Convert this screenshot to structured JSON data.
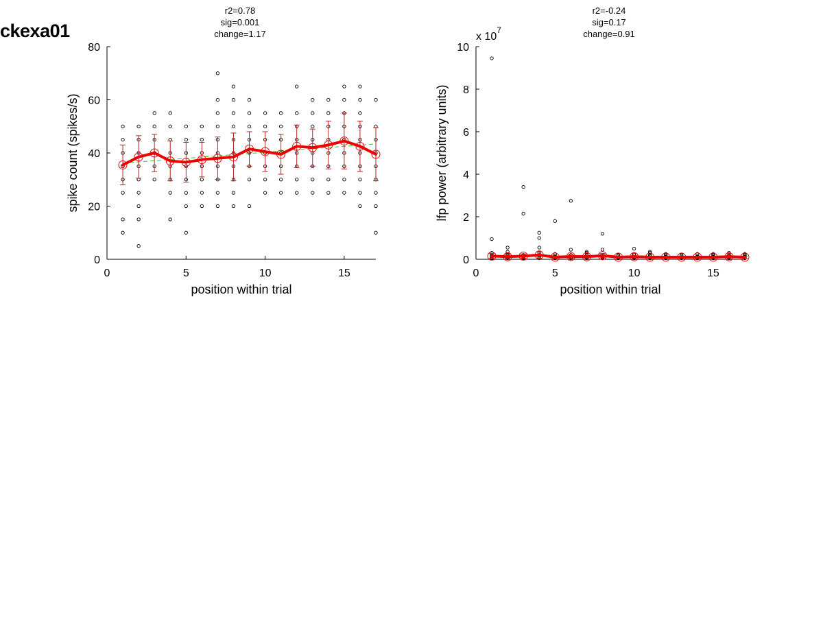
{
  "figure_title": "ckexa01",
  "chart_data": [
    {
      "type": "scatter",
      "stats": [
        "r2=0.78",
        "sig=0.001",
        "change=1.17"
      ],
      "xlabel": "position within trial",
      "ylabel": "spike count (spikes/s)",
      "xlim": [
        0,
        17
      ],
      "ylim": [
        0,
        80
      ],
      "xticks": [
        0,
        5,
        10,
        15
      ],
      "yticks": [
        0,
        20,
        40,
        60,
        80
      ],
      "exponent_label": "",
      "grid": false,
      "trials": [
        {
          "x": 1,
          "y": [
            10,
            15,
            25,
            30,
            35,
            40,
            45,
            50
          ]
        },
        {
          "x": 2,
          "y": [
            5,
            15,
            20,
            25,
            30,
            35,
            40,
            45,
            50
          ]
        },
        {
          "x": 3,
          "y": [
            30,
            35,
            40,
            45,
            50,
            55
          ]
        },
        {
          "x": 4,
          "y": [
            15,
            25,
            30,
            35,
            40,
            45,
            50,
            55
          ]
        },
        {
          "x": 5,
          "y": [
            10,
            20,
            25,
            30,
            35,
            40,
            45,
            50
          ]
        },
        {
          "x": 6,
          "y": [
            20,
            25,
            30,
            35,
            40,
            45,
            50
          ]
        },
        {
          "x": 7,
          "y": [
            20,
            25,
            30,
            35,
            40,
            45,
            50,
            55,
            60,
            70
          ]
        },
        {
          "x": 8,
          "y": [
            20,
            25,
            30,
            35,
            40,
            45,
            50,
            55,
            60,
            65
          ]
        },
        {
          "x": 9,
          "y": [
            20,
            30,
            35,
            40,
            45,
            50,
            55,
            60
          ]
        },
        {
          "x": 10,
          "y": [
            25,
            30,
            35,
            40,
            45,
            50,
            55
          ]
        },
        {
          "x": 11,
          "y": [
            25,
            30,
            35,
            40,
            45,
            50,
            55
          ]
        },
        {
          "x": 12,
          "y": [
            25,
            30,
            35,
            40,
            45,
            50,
            55,
            65
          ]
        },
        {
          "x": 13,
          "y": [
            25,
            30,
            35,
            40,
            45,
            50,
            55,
            60
          ]
        },
        {
          "x": 14,
          "y": [
            25,
            30,
            35,
            40,
            45,
            50,
            55,
            60
          ]
        },
        {
          "x": 15,
          "y": [
            25,
            30,
            35,
            40,
            45,
            50,
            55,
            60,
            65
          ]
        },
        {
          "x": 16,
          "y": [
            20,
            25,
            30,
            35,
            40,
            45,
            50,
            55,
            60,
            65
          ]
        },
        {
          "x": 17,
          "y": [
            10,
            20,
            25,
            30,
            35,
            40,
            45,
            50,
            60
          ]
        }
      ],
      "mean": {
        "x": [
          1,
          2,
          3,
          4,
          5,
          6,
          7,
          8,
          9,
          10,
          11,
          12,
          13,
          14,
          15,
          16,
          17
        ],
        "y": [
          35.5,
          38.5,
          40,
          37,
          36.5,
          37.5,
          38,
          38.5,
          41.5,
          40.5,
          39.5,
          42.5,
          42,
          43,
          44.5,
          42.5,
          39.5
        ],
        "err": [
          7.5,
          8,
          7,
          7.5,
          7.5,
          6.5,
          8,
          9,
          6.5,
          7.5,
          7.5,
          8,
          7,
          9,
          10.5,
          9.5,
          10
        ]
      },
      "fit": {
        "x": [
          1,
          17
        ],
        "y": [
          36.2,
          43.4
        ]
      },
      "colors": {
        "mean": "#ee0000",
        "error": "#bb2222",
        "fit": "#33cc33",
        "points": "#000000"
      }
    },
    {
      "type": "scatter",
      "stats": [
        "r2=-0.24",
        "sig=0.17",
        "change=0.91"
      ],
      "xlabel": "position within trial",
      "ylabel": "lfp power (arbitrary units)",
      "xlim": [
        0,
        17
      ],
      "ylim": [
        0,
        10
      ],
      "xticks": [
        0,
        5,
        10,
        15
      ],
      "yticks": [
        0,
        2,
        4,
        6,
        8,
        10
      ],
      "exponent_label": "x 10",
      "exponent_power": "7",
      "grid": false,
      "trials": [
        {
          "x": 1,
          "y": [
            0.05,
            0.1,
            0.15,
            0.2,
            0.3,
            0.95,
            9.45
          ]
        },
        {
          "x": 2,
          "y": [
            0.05,
            0.1,
            0.15,
            0.2,
            0.25,
            0.35,
            0.55
          ]
        },
        {
          "x": 3,
          "y": [
            0.05,
            0.1,
            0.15,
            0.2,
            2.15,
            3.4
          ]
        },
        {
          "x": 4,
          "y": [
            0.05,
            0.1,
            0.2,
            0.3,
            0.55,
            1.0,
            1.25
          ]
        },
        {
          "x": 5,
          "y": [
            0.05,
            0.1,
            0.15,
            0.25,
            1.8
          ]
        },
        {
          "x": 6,
          "y": [
            0.05,
            0.1,
            0.15,
            0.2,
            0.45,
            2.75
          ]
        },
        {
          "x": 7,
          "y": [
            0.05,
            0.1,
            0.2,
            0.3,
            0.35
          ]
        },
        {
          "x": 8,
          "y": [
            0.05,
            0.1,
            0.15,
            0.2,
            0.45,
            1.2
          ]
        },
        {
          "x": 9,
          "y": [
            0.05,
            0.1,
            0.15,
            0.2
          ]
        },
        {
          "x": 10,
          "y": [
            0.05,
            0.1,
            0.2,
            0.25,
            0.5
          ]
        },
        {
          "x": 11,
          "y": [
            0.05,
            0.1,
            0.15,
            0.2,
            0.3,
            0.35
          ]
        },
        {
          "x": 12,
          "y": [
            0.05,
            0.1,
            0.15,
            0.2,
            0.25
          ]
        },
        {
          "x": 13,
          "y": [
            0.05,
            0.1,
            0.15,
            0.2
          ]
        },
        {
          "x": 14,
          "y": [
            0.05,
            0.1,
            0.15,
            0.25
          ]
        },
        {
          "x": 15,
          "y": [
            0.05,
            0.1,
            0.15,
            0.2,
            0.25
          ]
        },
        {
          "x": 16,
          "y": [
            0.05,
            0.1,
            0.15,
            0.2,
            0.3
          ]
        },
        {
          "x": 17,
          "y": [
            0.05,
            0.1,
            0.15,
            0.2,
            0.25
          ]
        }
      ],
      "mean": {
        "x": [
          1,
          2,
          3,
          4,
          5,
          6,
          7,
          8,
          9,
          10,
          11,
          12,
          13,
          14,
          15,
          16,
          17
        ],
        "y": [
          0.15,
          0.12,
          0.15,
          0.2,
          0.1,
          0.13,
          0.12,
          0.17,
          0.1,
          0.12,
          0.1,
          0.1,
          0.1,
          0.1,
          0.1,
          0.12,
          0.1
        ],
        "err": [
          0.12,
          0.08,
          0.1,
          0.15,
          0.05,
          0.08,
          0.06,
          0.1,
          0.04,
          0.06,
          0.04,
          0.04,
          0.04,
          0.04,
          0.04,
          0.06,
          0.05
        ]
      },
      "fit": {
        "x": [
          1,
          17
        ],
        "y": [
          0.16,
          0.1
        ]
      },
      "colors": {
        "mean": "#ee0000",
        "error": "#bb2222",
        "fit": "#33cc33",
        "points": "#000000"
      }
    }
  ]
}
